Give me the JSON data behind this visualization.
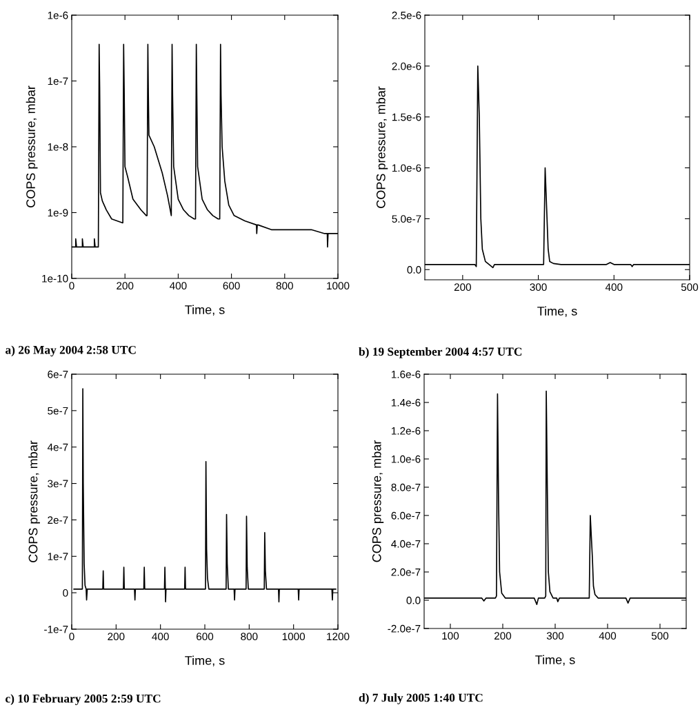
{
  "chart_data": [
    {
      "type": "line",
      "xlabel": "Time, s",
      "ylabel": "COPS pressure, mbar",
      "log": "y",
      "xlim": [
        0,
        1000
      ],
      "xticks": [
        0,
        200,
        400,
        600,
        800,
        1000
      ],
      "ylim": [
        1e-10,
        1e-06
      ],
      "yticks": [
        {
          "value": 1e-10,
          "label": "1e-10"
        },
        {
          "value": 1e-09,
          "label": "1e-9"
        },
        {
          "value": 1e-08,
          "label": "1e-8"
        },
        {
          "value": 1e-07,
          "label": "1e-7"
        },
        {
          "value": 1e-06,
          "label": "1e-6"
        }
      ],
      "annotations": [
        "a) 26 May 2004 2:58 UTC"
      ],
      "series": [
        {
          "color": "#000000",
          "x": [
            0,
            15,
            15,
            18,
            40,
            40,
            43,
            85,
            85,
            88,
            98,
            100,
            103,
            105,
            108,
            115,
            130,
            150,
            170,
            190,
            192,
            195,
            197,
            200,
            210,
            230,
            260,
            280,
            283,
            286,
            288,
            290,
            310,
            340,
            360,
            370,
            374,
            377,
            379,
            383,
            400,
            420,
            440,
            460,
            465,
            468,
            470,
            473,
            490,
            510,
            530,
            550,
            556,
            559,
            561,
            565,
            575,
            590,
            610,
            650,
            694,
            695,
            697,
            700,
            750,
            800,
            850,
            900,
            950,
            960,
            961,
            963,
            1000
          ],
          "values": [
            3e-10,
            3e-10,
            4e-10,
            3e-10,
            3e-10,
            4e-10,
            3e-10,
            3e-10,
            4e-10,
            3e-10,
            3e-10,
            3e-10,
            3.6e-07,
            8e-08,
            2e-09,
            1.5e-09,
            1.1e-09,
            8e-10,
            7.5e-10,
            7e-10,
            7e-10,
            3.6e-07,
            8e-08,
            5e-09,
            3.5e-09,
            1.6e-09,
            1.1e-09,
            9e-10,
            9e-10,
            3.6e-07,
            6e-08,
            1.5e-08,
            1e-08,
            4e-09,
            1.8e-09,
            1.1e-09,
            9e-10,
            3.6e-07,
            6e-08,
            5e-09,
            1.6e-09,
            1.1e-09,
            9e-10,
            8e-10,
            8e-10,
            3.6e-07,
            6e-08,
            5e-09,
            1.6e-09,
            1.1e-09,
            9e-10,
            8e-10,
            8e-10,
            3.6e-07,
            6e-08,
            1e-08,
            3e-09,
            1.3e-09,
            9e-10,
            7.5e-10,
            6.5e-10,
            4.8e-10,
            6.5e-10,
            6.5e-10,
            5.5e-10,
            5.5e-10,
            5.5e-10,
            5.5e-10,
            4.8e-10,
            4.8e-10,
            3e-10,
            4.8e-10,
            4.8e-10
          ]
        }
      ]
    },
    {
      "type": "line",
      "xlabel": "Time, s",
      "ylabel": "COPS pressure, mbar",
      "xlim": [
        150,
        500
      ],
      "xticks": [
        200,
        300,
        400,
        500
      ],
      "ylim": [
        -1e-07,
        2.5e-06
      ],
      "yticks": [
        {
          "value": 0,
          "label": "0.0"
        },
        {
          "value": 5e-07,
          "label": "5.0e-7"
        },
        {
          "value": 1e-06,
          "label": "1.0e-6"
        },
        {
          "value": 1.5e-06,
          "label": "1.5e-6"
        },
        {
          "value": 2e-06,
          "label": "2.0e-6"
        },
        {
          "value": 2.5e-06,
          "label": "2.5e-6"
        }
      ],
      "annotations": [
        "b) 19 September 2004 4:57 UTC"
      ],
      "series": [
        {
          "color": "#000000",
          "x": [
            150,
            216,
            218,
            220,
            222,
            224,
            226,
            230,
            235,
            240,
            242,
            250,
            300,
            307,
            309,
            311,
            313,
            315,
            320,
            330,
            390,
            395,
            400,
            422,
            424,
            426,
            500
          ],
          "values": [
            5e-08,
            5e-08,
            3e-08,
            2e-06,
            1.5e-06,
            5e-07,
            2e-07,
            8e-08,
            5e-08,
            2e-08,
            5e-08,
            5e-08,
            5e-08,
            5e-08,
            1e-06,
            6e-07,
            2e-07,
            8e-08,
            6e-08,
            5e-08,
            5e-08,
            7e-08,
            5e-08,
            5e-08,
            3e-08,
            5e-08,
            5e-08
          ]
        }
      ]
    },
    {
      "type": "line",
      "xlabel": "Time, s",
      "ylabel": "COPS pressure, mbar",
      "xlim": [
        0,
        1200
      ],
      "xticks": [
        0,
        200,
        400,
        600,
        800,
        1000,
        1200
      ],
      "ylim": [
        -1e-07,
        6e-07
      ],
      "yticks": [
        {
          "value": -1e-07,
          "label": "-1e-7"
        },
        {
          "value": 0,
          "label": "0"
        },
        {
          "value": 1e-07,
          "label": "1e-7"
        },
        {
          "value": 2e-07,
          "label": "2e-7"
        },
        {
          "value": 3e-07,
          "label": "3e-7"
        },
        {
          "value": 4e-07,
          "label": "4e-7"
        },
        {
          "value": 5e-07,
          "label": "5e-7"
        },
        {
          "value": 6e-07,
          "label": "6e-7"
        }
      ],
      "annotations": [
        "c) 10 February 2005 2:59 UTC"
      ],
      "series": [
        {
          "color": "#000000",
          "x": [
            10,
            48,
            50,
            52,
            56,
            60,
            65,
            67,
            70,
            140,
            142,
            144,
            233,
            235,
            237,
            283,
            285,
            287,
            325,
            327,
            329,
            418,
            420,
            422,
            423,
            425,
            509,
            511,
            513,
            603,
            605,
            608,
            612,
            618,
            696,
            698,
            701,
            706,
            732,
            734,
            736,
            786,
            788,
            791,
            796,
            868,
            870,
            873,
            878,
            932,
            934,
            936,
            1021,
            1023,
            1025,
            1173,
            1175,
            1177,
            1190
          ],
          "values": [
            1e-08,
            1e-08,
            5.6e-07,
            3e-07,
            8e-08,
            2e-08,
            1e-08,
            -2e-08,
            1e-08,
            1e-08,
            6e-08,
            1e-08,
            1e-08,
            7e-08,
            1e-08,
            1e-08,
            -2e-08,
            1e-08,
            1e-08,
            7e-08,
            1e-08,
            1e-08,
            7e-08,
            1e-08,
            -2.5e-08,
            1e-08,
            1e-08,
            7e-08,
            1e-08,
            1e-08,
            3.6e-07,
            1.2e-07,
            4e-08,
            1e-08,
            1e-08,
            2.15e-07,
            8e-08,
            1e-08,
            1e-08,
            -2e-08,
            1e-08,
            1e-08,
            2.1e-07,
            7e-08,
            1e-08,
            1e-08,
            1.65e-07,
            6e-08,
            1e-08,
            1e-08,
            -2.5e-08,
            1e-08,
            1e-08,
            -2e-08,
            1e-08,
            1e-08,
            -2e-08,
            1e-08,
            1e-08
          ]
        }
      ]
    },
    {
      "type": "line",
      "xlabel": "Time, s",
      "ylabel": "COPS pressure, mbar",
      "xlim": [
        50,
        550
      ],
      "xticks": [
        100,
        200,
        300,
        400,
        500
      ],
      "ylim": [
        -2e-07,
        1.6e-06
      ],
      "yticks": [
        {
          "value": -2e-07,
          "label": "-2.0e-7"
        },
        {
          "value": 0,
          "label": "0.0"
        },
        {
          "value": 2e-07,
          "label": "2.0e-7"
        },
        {
          "value": 4e-07,
          "label": "4.0e-7"
        },
        {
          "value": 6e-07,
          "label": "6.0e-7"
        },
        {
          "value": 8e-07,
          "label": "8.0e-7"
        },
        {
          "value": 1e-06,
          "label": "1.0e-6"
        },
        {
          "value": 1.2e-06,
          "label": "1.2e-6"
        },
        {
          "value": 1.4e-06,
          "label": "1.4e-6"
        },
        {
          "value": 1.6e-06,
          "label": "1.6e-6"
        }
      ],
      "annotations": [
        "d) 7 July 2005 1:40 UTC"
      ],
      "series": [
        {
          "color": "#000000",
          "x": [
            50,
            160,
            164,
            168,
            186,
            188,
            190,
            192,
            194,
            198,
            205,
            260,
            265,
            268,
            280,
            282,
            283,
            285,
            287,
            290,
            296,
            303,
            305,
            308,
            365,
            367,
            369,
            371,
            373,
            376,
            382,
            435,
            439,
            443,
            550
          ],
          "values": [
            1.5e-08,
            1.5e-08,
            -5e-09,
            1.5e-08,
            1.5e-08,
            3e-08,
            1.46e-06,
            7e-07,
            2e-07,
            5e-08,
            1.5e-08,
            1.5e-08,
            -3e-08,
            1.5e-08,
            1.5e-08,
            3e-08,
            1.48e-06,
            8e-07,
            2e-07,
            6e-08,
            1.5e-08,
            1.5e-08,
            -1e-08,
            1.5e-08,
            1.5e-08,
            6e-07,
            4.5e-07,
            3e-07,
            1e-07,
            4e-08,
            1.5e-08,
            1.5e-08,
            -2e-08,
            1.5e-08,
            1.5e-08
          ]
        }
      ]
    }
  ]
}
